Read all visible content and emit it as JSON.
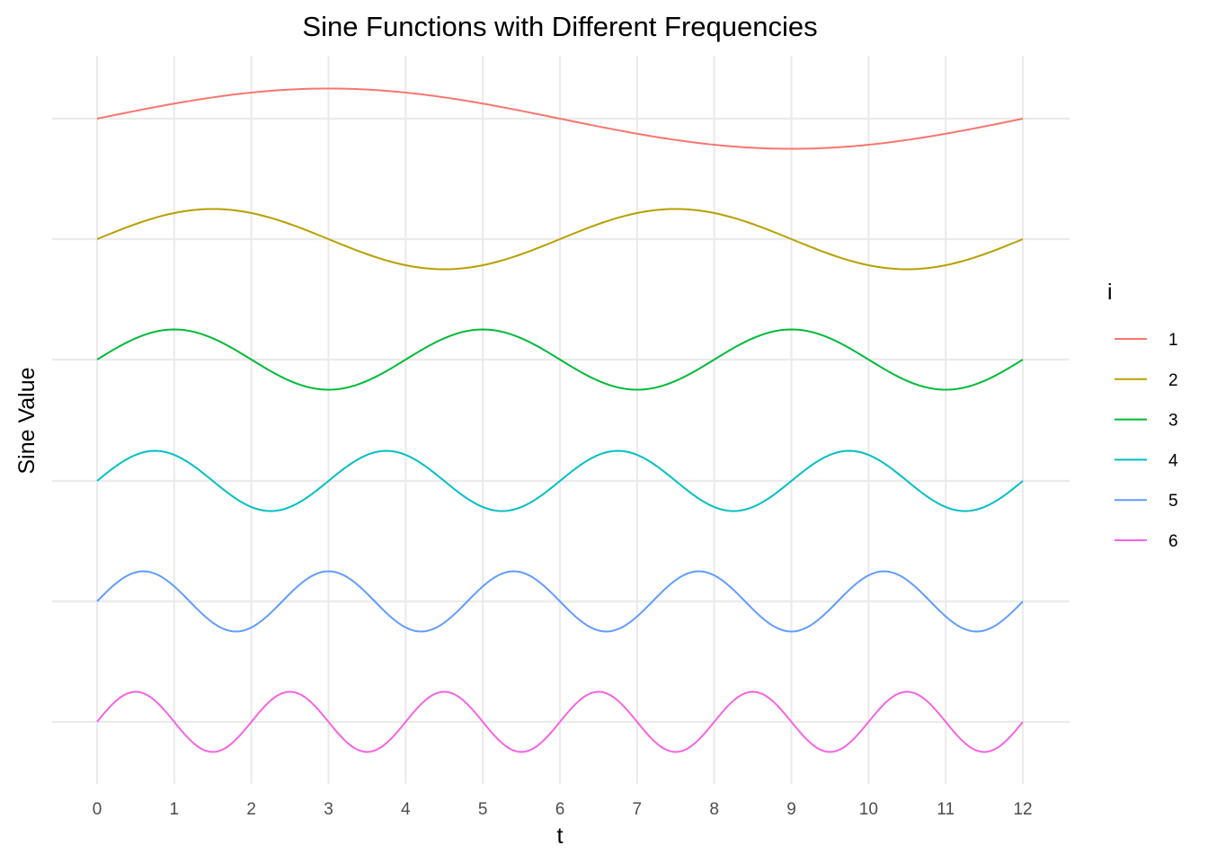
{
  "chart_data": {
    "type": "line",
    "title": "Sine Functions with Different Frequencies",
    "xlabel": "t",
    "ylabel": "Sine Value",
    "xlim": [
      0,
      12
    ],
    "x_ticks": [
      "0",
      "1",
      "2",
      "3",
      "4",
      "5",
      "6",
      "7",
      "8",
      "9",
      "10",
      "11",
      "12"
    ],
    "y_tick_labels_shown": false,
    "grid": true,
    "legend": {
      "title": "i",
      "position": "right"
    },
    "series_description": "Each series i is sin(2*pi*i*t/12), drawn offset vertically (series 1 at top, series 6 at bottom)",
    "x_sampling": {
      "start": 0,
      "end": 12,
      "step": 0.05
    },
    "series": [
      {
        "name": "1",
        "i": 1,
        "amplitude": 1,
        "color": "#F8766D"
      },
      {
        "name": "2",
        "i": 2,
        "amplitude": 1,
        "color": "#B79F00"
      },
      {
        "name": "3",
        "i": 3,
        "amplitude": 1,
        "color": "#00BA38"
      },
      {
        "name": "4",
        "i": 4,
        "amplitude": 1,
        "color": "#00BFC4"
      },
      {
        "name": "5",
        "i": 5,
        "amplitude": 1,
        "color": "#619CFF"
      },
      {
        "name": "6",
        "i": 6,
        "amplitude": 1,
        "color": "#F564E3"
      }
    ]
  }
}
